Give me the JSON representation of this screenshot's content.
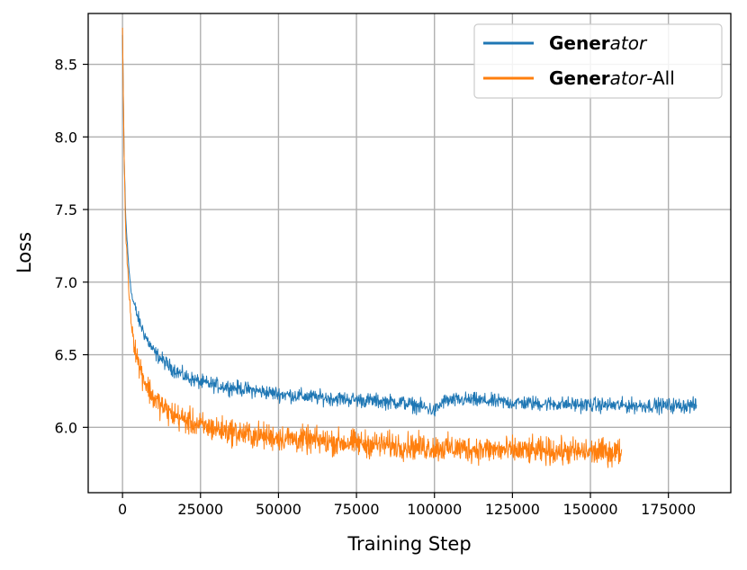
{
  "chart_data": {
    "type": "line",
    "xlabel": "Training Step",
    "ylabel": "Loss",
    "xlim": [
      -11000,
      195000
    ],
    "ylim": [
      5.55,
      8.85
    ],
    "xticks": [
      0,
      25000,
      50000,
      75000,
      100000,
      125000,
      150000,
      175000
    ],
    "yticks": [
      6.0,
      6.5,
      7.0,
      7.5,
      8.0,
      8.5
    ],
    "xtick_labels": [
      "0",
      "25000",
      "50000",
      "75000",
      "100000",
      "125000",
      "150000",
      "175000"
    ],
    "ytick_labels": [
      "6.0",
      "6.5",
      "7.0",
      "7.5",
      "8.0",
      "8.5"
    ],
    "grid": true,
    "legend_position": "upper-right",
    "series": [
      {
        "name": "Generator",
        "legend_bold": "Gener",
        "legend_italic": "ator",
        "legend_suffix": "",
        "color": "#1f77b4",
        "noise": 0.025,
        "x": [
          0,
          500,
          1000,
          2000,
          3000,
          5000,
          7500,
          10000,
          15000,
          20000,
          25000,
          30000,
          40000,
          50000,
          60000,
          75000,
          90000,
          98000,
          100000,
          103000,
          110000,
          125000,
          140000,
          160000,
          175000,
          184000
        ],
        "y": [
          8.7,
          7.9,
          7.45,
          7.1,
          6.9,
          6.75,
          6.62,
          6.52,
          6.42,
          6.35,
          6.31,
          6.29,
          6.26,
          6.23,
          6.21,
          6.19,
          6.17,
          6.13,
          6.11,
          6.18,
          6.19,
          6.17,
          6.16,
          6.15,
          6.15,
          6.15
        ]
      },
      {
        "name": "Generator-All",
        "legend_bold": "Gener",
        "legend_italic": "ator",
        "legend_suffix": "-All",
        "color": "#ff7f0e",
        "noise": 0.045,
        "x": [
          0,
          500,
          1000,
          2000,
          3000,
          5000,
          7500,
          10000,
          15000,
          20000,
          25000,
          30000,
          40000,
          50000,
          60000,
          75000,
          100000,
          125000,
          150000,
          160000
        ],
        "y": [
          8.75,
          7.9,
          7.35,
          6.95,
          6.68,
          6.45,
          6.3,
          6.2,
          6.1,
          6.05,
          6.01,
          5.99,
          5.95,
          5.93,
          5.91,
          5.89,
          5.86,
          5.84,
          5.83,
          5.83
        ]
      }
    ]
  }
}
